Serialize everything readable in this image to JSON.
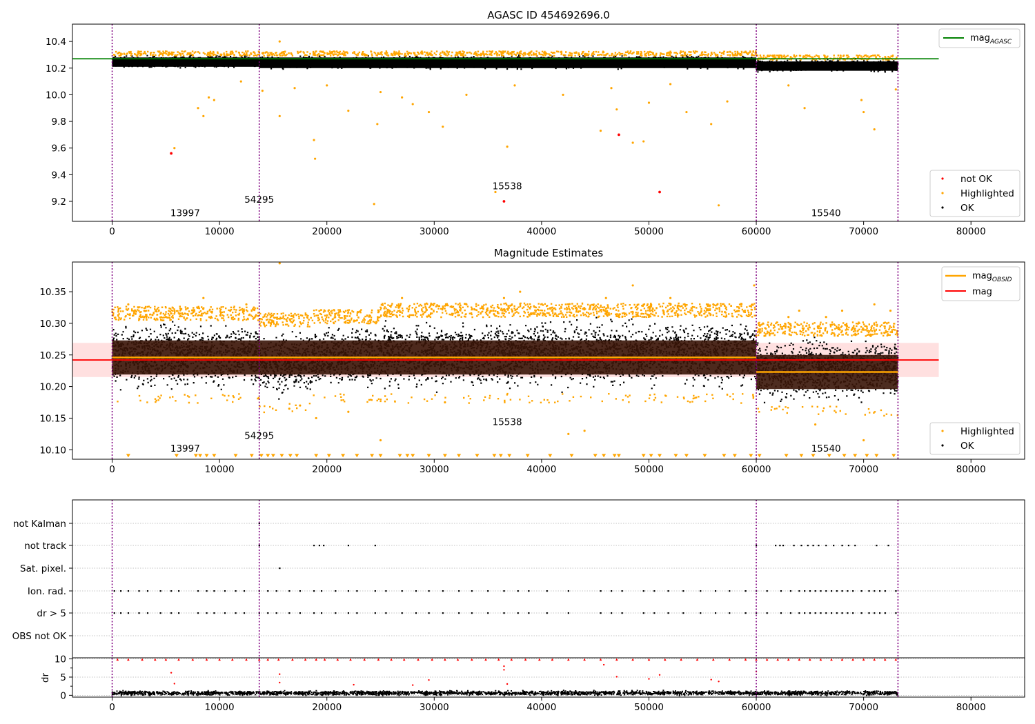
{
  "chart_data": [
    {
      "type": "scatter",
      "title": "AGASC ID 454692696.0",
      "xlabel": "",
      "ylabel": "",
      "xlim": [
        -3700,
        85000
      ],
      "ylim": [
        9.05,
        10.53
      ],
      "xticks": [
        0,
        10000,
        20000,
        30000,
        40000,
        50000,
        60000,
        70000,
        80000
      ],
      "xtick_labels": [
        "0",
        "10000",
        "20000",
        "30000",
        "40000",
        "50000",
        "60000",
        "70000",
        "80000"
      ],
      "yticks": [
        9.2,
        9.4,
        9.6,
        9.8,
        10.0,
        10.2,
        10.4
      ],
      "ytick_labels": [
        "9.2",
        "9.4",
        "9.6",
        "9.8",
        "10.0",
        "10.2",
        "10.4"
      ],
      "obsid_boundaries": [
        0,
        13700,
        60000,
        73200
      ],
      "obsid_labels": [
        {
          "text": "13997",
          "x": 6800,
          "y": 9.09
        },
        {
          "text": "54295",
          "x": 13700,
          "y": 9.19
        },
        {
          "text": "15538",
          "x": 36800,
          "y": 9.29
        },
        {
          "text": "15540",
          "x": 66500,
          "y": 9.09
        }
      ],
      "mag_agasc": 10.27,
      "series": [
        {
          "name": "not OK",
          "color": "#ff0000",
          "points": [
            [
              5500,
              9.56
            ],
            [
              36500,
              9.2
            ],
            [
              47200,
              9.7
            ],
            [
              51000,
              9.27
            ]
          ]
        },
        {
          "name": "Highlighted",
          "color": "#ffa500",
          "points": [
            [
              5800,
              9.6
            ],
            [
              8000,
              9.9
            ],
            [
              8500,
              9.84
            ],
            [
              9000,
              9.98
            ],
            [
              9500,
              9.96
            ],
            [
              12000,
              10.1
            ],
            [
              14000,
              10.03
            ],
            [
              15600,
              10.4
            ],
            [
              15600,
              9.84
            ],
            [
              17000,
              10.05
            ],
            [
              18800,
              9.66
            ],
            [
              18900,
              9.52
            ],
            [
              20000,
              10.07
            ],
            [
              22000,
              9.88
            ],
            [
              24400,
              9.18
            ],
            [
              24700,
              9.78
            ],
            [
              25000,
              10.02
            ],
            [
              27000,
              9.98
            ],
            [
              28000,
              9.93
            ],
            [
              29500,
              9.87
            ],
            [
              30800,
              9.76
            ],
            [
              33000,
              10.0
            ],
            [
              35700,
              9.27
            ],
            [
              36800,
              9.61
            ],
            [
              37500,
              10.07
            ],
            [
              42000,
              10.0
            ],
            [
              45500,
              9.73
            ],
            [
              46500,
              10.05
            ],
            [
              47000,
              9.89
            ],
            [
              48500,
              9.64
            ],
            [
              49500,
              9.65
            ],
            [
              50000,
              9.94
            ],
            [
              52000,
              10.08
            ],
            [
              53500,
              9.87
            ],
            [
              55800,
              9.78
            ],
            [
              56500,
              9.17
            ],
            [
              57300,
              9.95
            ],
            [
              63000,
              10.07
            ],
            [
              64500,
              9.9
            ],
            [
              69800,
              9.96
            ],
            [
              70000,
              9.87
            ],
            [
              71000,
              9.74
            ],
            [
              73000,
              10.04
            ]
          ]
        },
        {
          "name": "OK",
          "color": "#000000",
          "bands": [
            [
              0,
              13700,
              10.2,
              10.31
            ],
            [
              13700,
              60000,
              10.19,
              10.31
            ],
            [
              60000,
              73200,
              10.17,
              10.28
            ]
          ]
        }
      ],
      "legend": {
        "upper": [
          "mag_AGASC"
        ],
        "lower": [
          "not OK",
          "Highlighted",
          "OK"
        ],
        "placement": "upper right / lower right"
      },
      "legend_labels": {
        "mag_agasc": "mag",
        "mag_agasc_sub": "AGASC"
      }
    },
    {
      "type": "scatter",
      "title": "Magnitude Estimates",
      "xlabel": "",
      "ylabel": "",
      "xlim": [
        -3700,
        85000
      ],
      "ylim": [
        10.085,
        10.397
      ],
      "xticks": [
        0,
        10000,
        20000,
        30000,
        40000,
        50000,
        60000,
        70000,
        80000
      ],
      "xtick_labels": [
        "0",
        "10000",
        "20000",
        "30000",
        "40000",
        "50000",
        "60000",
        "70000",
        "80000"
      ],
      "yticks": [
        10.1,
        10.15,
        10.2,
        10.25,
        10.3,
        10.35
      ],
      "ytick_labels": [
        "10.10",
        "10.15",
        "10.20",
        "10.25",
        "10.30",
        "10.35"
      ],
      "obsid_labels": [
        {
          "text": "13997",
          "x": 6800,
          "y": 10.097
        },
        {
          "text": "54295",
          "x": 13700,
          "y": 10.117
        },
        {
          "text": "15538",
          "x": 36800,
          "y": 10.139
        },
        {
          "text": "15540",
          "x": 66500,
          "y": 10.097
        }
      ],
      "mag": 10.242,
      "mag_band": [
        10.215,
        10.269
      ],
      "mag_obsid": [
        {
          "x": [
            0,
            60000
          ],
          "value": 10.246
        },
        {
          "x": [
            60000,
            73200
          ],
          "value": 10.223
        }
      ],
      "obsid_bands": [
        {
          "x": [
            0,
            60000
          ],
          "range": [
            10.219,
            10.273
          ]
        },
        {
          "x": [
            60000,
            73200
          ],
          "range": [
            10.196,
            10.25
          ]
        }
      ],
      "ok_bands": [
        [
          0,
          13700,
          10.19,
          10.31
        ],
        [
          13700,
          18500,
          10.175,
          10.3
        ],
        [
          18500,
          25000,
          10.19,
          10.305
        ],
        [
          25000,
          60000,
          10.19,
          10.315
        ],
        [
          60000,
          73200,
          10.17,
          10.285
        ]
      ],
      "highlighted_points": [
        [
          1500,
          10.33
        ],
        [
          3000,
          10.32
        ],
        [
          5000,
          10.31
        ],
        [
          8500,
          10.34
        ],
        [
          11000,
          10.32
        ],
        [
          12500,
          10.33
        ],
        [
          15600,
          10.395
        ],
        [
          16500,
          10.165
        ],
        [
          17500,
          10.17
        ],
        [
          19000,
          10.15
        ],
        [
          22000,
          10.16
        ],
        [
          25000,
          10.115
        ],
        [
          27000,
          10.34
        ],
        [
          31000,
          10.175
        ],
        [
          33000,
          10.33
        ],
        [
          36500,
          10.34
        ],
        [
          38000,
          10.35
        ],
        [
          42500,
          10.125
        ],
        [
          44000,
          10.13
        ],
        [
          46000,
          10.34
        ],
        [
          48500,
          10.36
        ],
        [
          52000,
          10.34
        ],
        [
          56000,
          10.33
        ],
        [
          59800,
          10.36
        ],
        [
          63000,
          10.31
        ],
        [
          64000,
          10.32
        ],
        [
          65500,
          10.14
        ],
        [
          66500,
          10.31
        ],
        [
          68000,
          10.32
        ],
        [
          70000,
          10.115
        ],
        [
          71000,
          10.33
        ],
        [
          72500,
          10.32
        ]
      ],
      "clipped_low_x": [
        1500,
        6000,
        7800,
        8200,
        8800,
        9500,
        11500,
        13000,
        13900,
        14500,
        15000,
        15800,
        16600,
        17200,
        19000,
        20200,
        21500,
        22800,
        24200,
        25000,
        26800,
        27500,
        28000,
        29500,
        31000,
        32300,
        34000,
        35600,
        36200,
        37000,
        38700,
        40800,
        42800,
        45000,
        45800,
        46800,
        47200,
        49500,
        50200,
        51000,
        52500,
        53500,
        55200,
        57000,
        58000,
        59500,
        60300,
        62800,
        64200,
        65300,
        66800,
        68200,
        69200,
        70300,
        71200,
        72800
      ],
      "legend": {
        "upper": [
          "mag_OBSID",
          "mag"
        ],
        "lower": [
          "Highlighted",
          "OK"
        ],
        "placement": "upper right / lower right"
      },
      "legend_labels": {
        "mag_obsid": "mag",
        "mag_obsid_sub": "OBSID",
        "mag": "mag",
        "highlighted": "Highlighted",
        "ok": "OK"
      }
    },
    {
      "type": "scatter",
      "title": "",
      "xlabel": "",
      "ylabel": "",
      "xlim": [
        -3700,
        85000
      ],
      "xticks": [
        0,
        10000,
        20000,
        30000,
        40000,
        50000,
        60000,
        70000,
        80000
      ],
      "xtick_labels": [
        "0",
        "10000",
        "20000",
        "30000",
        "40000",
        "50000",
        "60000",
        "70000",
        "80000"
      ],
      "flag_rows": [
        "not Kalman",
        "not track",
        "Sat. pixel.",
        "Ion. rad.",
        "dr > 5",
        "OBS not OK"
      ],
      "flag_points": {
        "not Kalman": [
          13700
        ],
        "not track": [
          13700,
          18800,
          19300,
          19700,
          22000,
          24500,
          60000,
          61800,
          62200,
          62500,
          63500,
          64200,
          64800,
          65300,
          65800,
          66500,
          67200,
          68000,
          68600,
          69200,
          71200,
          72300
        ],
        "Sat. pixel.": [
          15600
        ],
        "Ion. rad.": [
          200,
          800,
          1500,
          2500,
          3300,
          4500,
          5500,
          6200,
          8000,
          8800,
          9500,
          10500,
          11500,
          12300,
          13700,
          14500,
          15300,
          16500,
          17500,
          18800,
          19500,
          20800,
          22000,
          22800,
          24500,
          25500,
          27000,
          28300,
          29500,
          30800,
          32300,
          33500,
          35000,
          36500,
          37800,
          38800,
          40500,
          42500,
          45500,
          46500,
          47500,
          49500,
          50500,
          51800,
          53200,
          54800,
          56200,
          57500,
          59000,
          60000,
          61000,
          62300,
          63200,
          64000,
          64500,
          65000,
          65500,
          66000,
          66500,
          67000,
          67500,
          68000,
          68500,
          69000,
          69800,
          70500,
          71000,
          71500,
          72000,
          73000
        ],
        "dr > 5": [
          200,
          800,
          1500,
          2500,
          3300,
          4500,
          5500,
          6200,
          8000,
          8800,
          9500,
          10500,
          11500,
          12300,
          13700,
          14500,
          15300,
          16500,
          17500,
          18800,
          19500,
          20800,
          22000,
          22800,
          24500,
          25500,
          27000,
          28300,
          29500,
          30800,
          32300,
          33500,
          35000,
          36500,
          37800,
          38800,
          40500,
          42500,
          45500,
          46500,
          47500,
          49500,
          50500,
          51800,
          53200,
          54800,
          56200,
          57500,
          59000,
          60000,
          61000,
          62300,
          63200,
          64000,
          64500,
          65000,
          65500,
          66000,
          66500,
          67000,
          67500,
          68000,
          68500,
          69000,
          69800,
          70500,
          71000,
          71500,
          72000,
          73000
        ],
        "OBS not OK": []
      },
      "dr_ylabel": "dr",
      "dr_yticks": [
        0,
        5,
        10
      ],
      "dr_ytick_labels": [
        "0",
        "5",
        "10"
      ],
      "dr_ylim": [
        -0.5,
        10.3
      ],
      "dr_red_points": [
        [
          5500,
          6.2
        ],
        [
          5800,
          3.2
        ],
        [
          15600,
          5.8
        ],
        [
          15600,
          3.5
        ],
        [
          22500,
          2.9
        ],
        [
          28000,
          2.8
        ],
        [
          29500,
          4.2
        ],
        [
          36500,
          7.0
        ],
        [
          36500,
          8.0
        ],
        [
          36800,
          3.1
        ],
        [
          45800,
          8.4
        ],
        [
          47000,
          5.1
        ],
        [
          50000,
          4.5
        ],
        [
          51000,
          5.6
        ],
        [
          55800,
          4.3
        ],
        [
          56500,
          3.8
        ],
        [
          60000,
          6.5
        ]
      ],
      "dr_red_top_x": [
        500,
        1500,
        2800,
        4000,
        5000,
        6200,
        7500,
        8800,
        10000,
        11200,
        12500,
        13700,
        14500,
        15500,
        16800,
        18000,
        19000,
        19800,
        21000,
        22200,
        23500,
        24800,
        26000,
        27200,
        28500,
        29800,
        31000,
        32200,
        33500,
        34800,
        36000,
        37200,
        38500,
        39800,
        41000,
        42500,
        44000,
        45500,
        47000,
        48500,
        50000,
        51500,
        53000,
        54500,
        56000,
        57500,
        59000,
        60000,
        61000,
        62000,
        63000,
        64000,
        65000,
        66000,
        67000,
        68000,
        69000,
        70000,
        71000,
        72000,
        73000
      ],
      "dr_ok_band": [
        0.0,
        1.6
      ]
    }
  ]
}
